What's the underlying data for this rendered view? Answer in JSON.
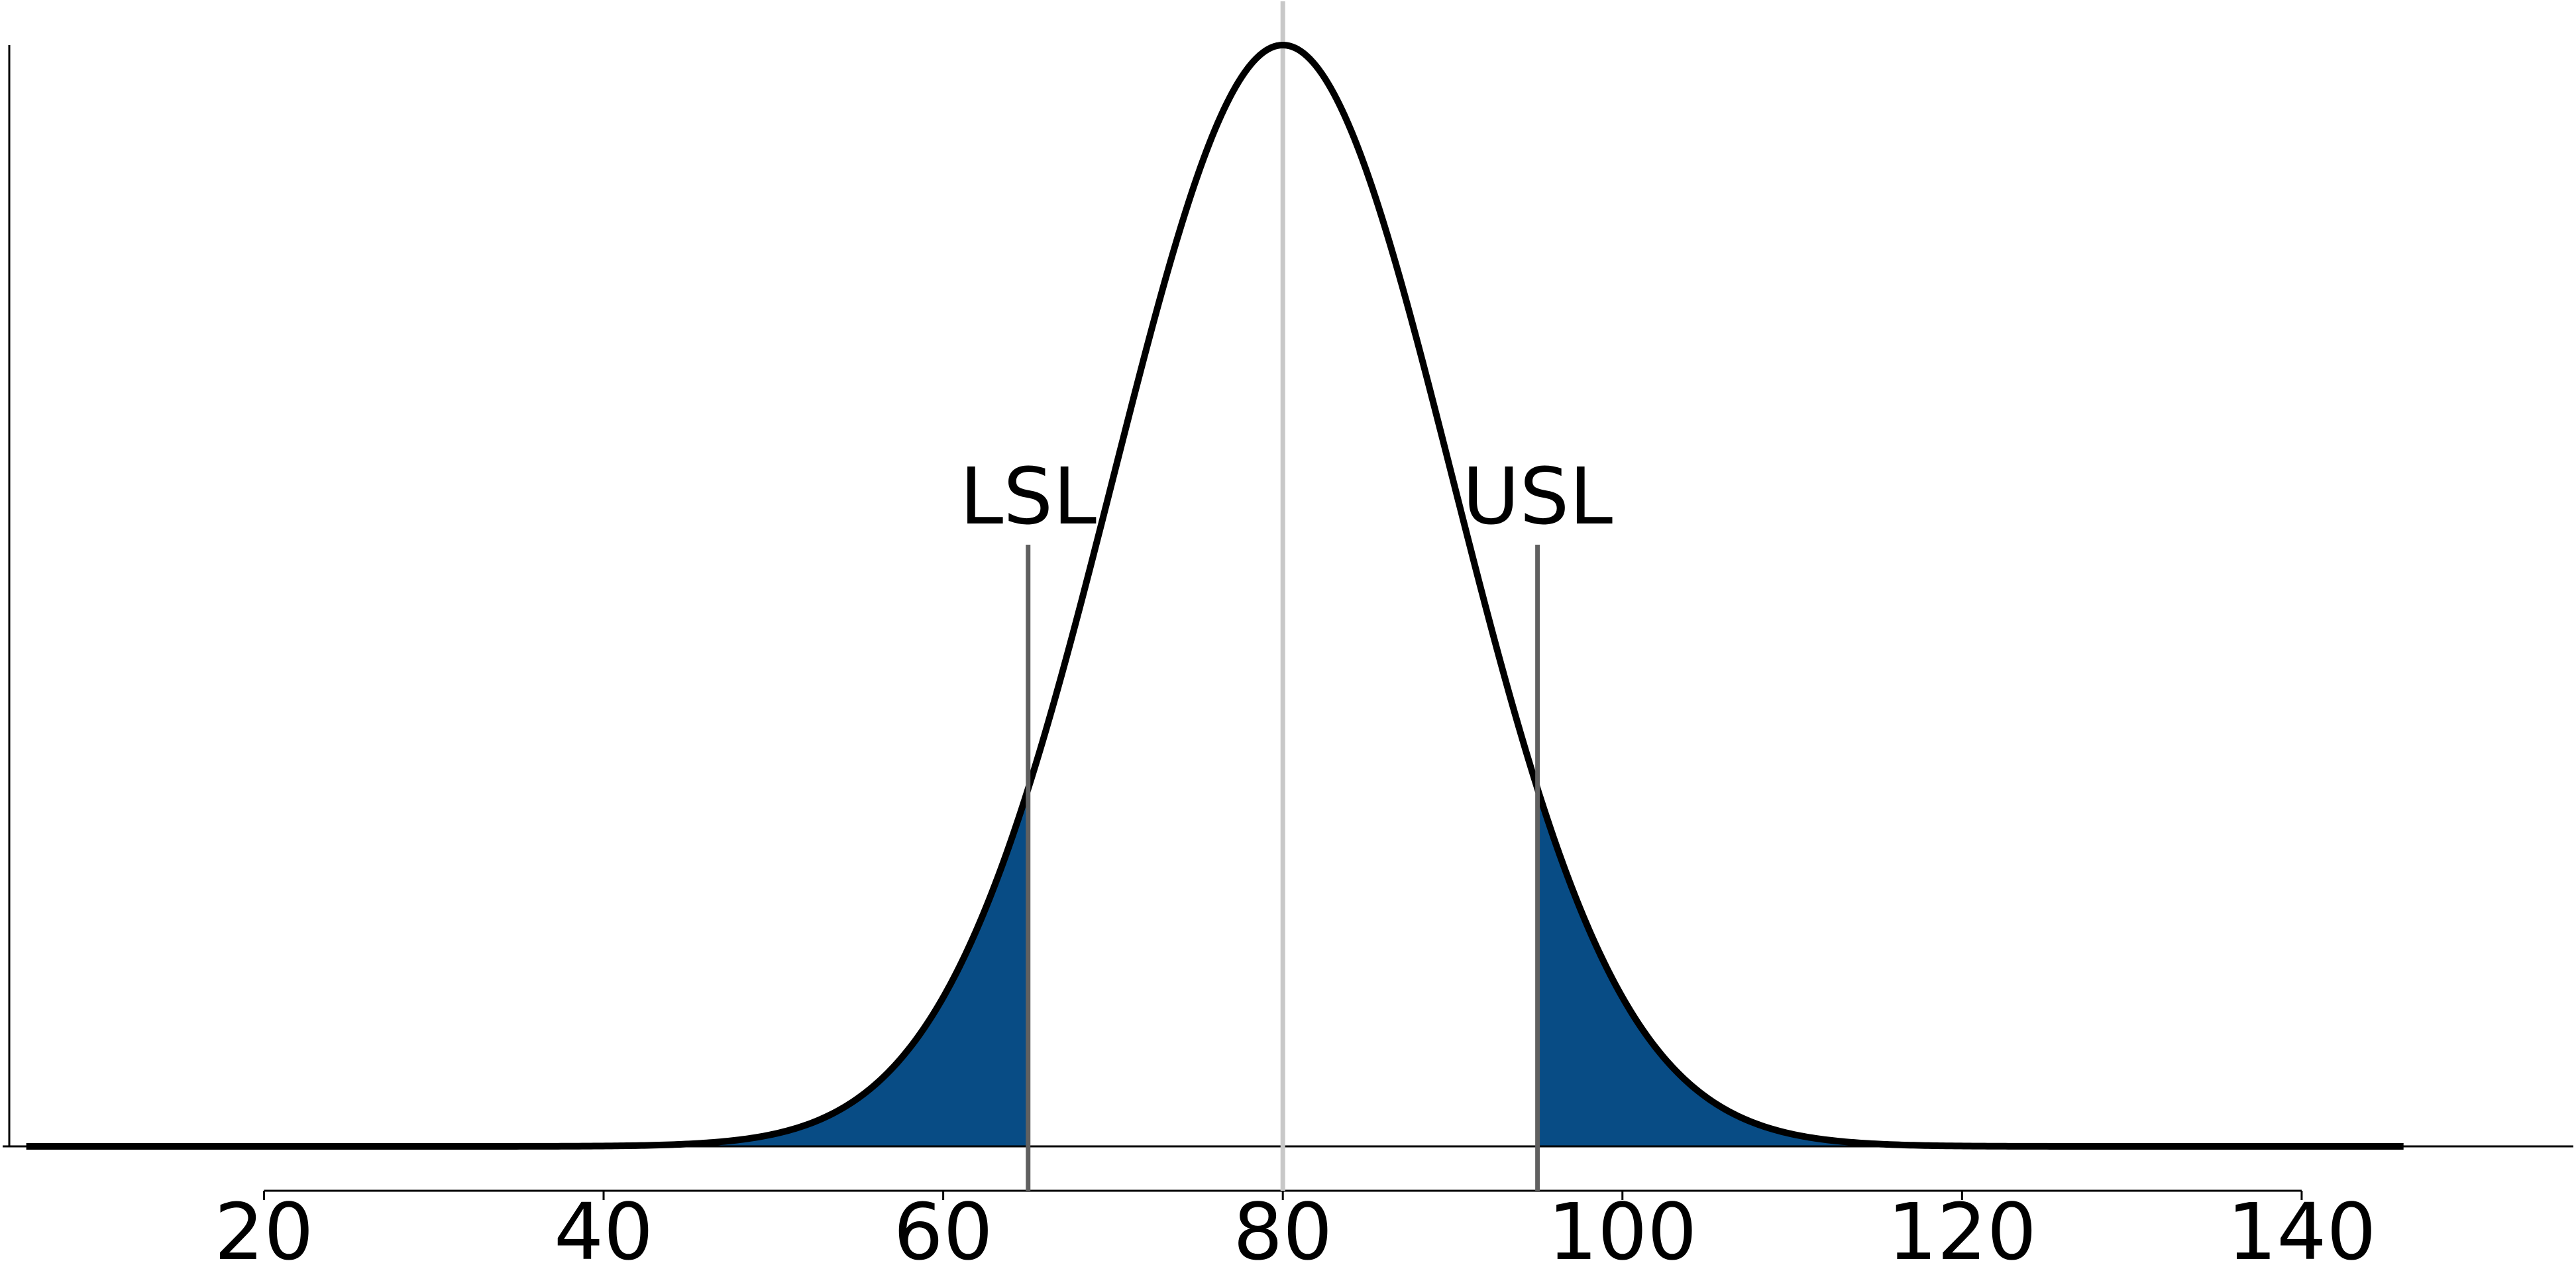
{
  "chart_data": {
    "type": "area",
    "title": "",
    "xlabel": "",
    "ylabel": "",
    "distribution": {
      "kind": "normal",
      "mean": 80,
      "std_dev": 10,
      "x_range": [
        6,
        146
      ]
    },
    "xlim": [
      5,
      156
    ],
    "x_ticks": [
      20,
      40,
      60,
      80,
      100,
      120,
      140
    ],
    "x_tick_labels": [
      "20",
      "40",
      "60",
      "80",
      "100",
      "120",
      "140"
    ],
    "center_line": 80,
    "spec_limits": [
      {
        "label": "LSL",
        "value": 65,
        "shade_side": "below"
      },
      {
        "label": "USL",
        "value": 95,
        "shade_side": "above"
      }
    ],
    "grid": false,
    "colors": {
      "curve": "#000000",
      "tail_fill": "#084c85",
      "center_line": "#c8c8c8",
      "spec_line": "#606060",
      "axis": "#000000"
    }
  }
}
